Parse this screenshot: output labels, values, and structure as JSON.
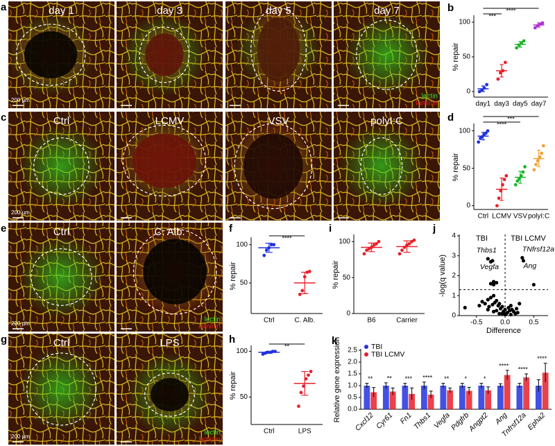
{
  "image_rows": [
    {
      "panel": "a",
      "images": [
        "day 1",
        "day 3",
        "day 5",
        "day 7"
      ],
      "scale_bar": "200 µm",
      "stain_legend": [
        "lectin",
        "laminin"
      ]
    },
    {
      "panel": "c",
      "images": [
        "Ctrl",
        "LCMV",
        "VSV",
        "polyI:C"
      ],
      "scale_bar": "200 µm"
    },
    {
      "panel": "e",
      "images": [
        "Ctrl",
        "C. Alb."
      ],
      "scale_bar": "200 µm",
      "stain_legend": [
        "lectin",
        "laminin"
      ]
    },
    {
      "panel": "g",
      "images": [
        "Ctrl",
        "LPS"
      ],
      "scale_bar": "200 µm",
      "stain_legend": [
        "lectin",
        "laminin"
      ]
    }
  ],
  "chart_data": [
    {
      "type": "dot",
      "panel": "b",
      "ylabel": "% repair",
      "ylim": [
        -8,
        108
      ],
      "yticks": [
        0,
        50,
        100
      ],
      "categories": [
        "day1",
        "day3",
        "day5",
        "day7"
      ],
      "colors": [
        "#2233dd",
        "#e8202a",
        "#1db32a",
        "#b030d0"
      ],
      "points": [
        [
          0,
          2,
          5,
          10
        ],
        [
          18,
          27,
          30,
          42
        ],
        [
          63,
          67,
          70,
          73
        ],
        [
          92,
          95,
          97,
          99
        ]
      ],
      "mean": [
        4,
        30,
        68,
        96
      ],
      "sd": [
        4,
        9,
        4,
        3
      ],
      "significance": [
        {
          "label": "***",
          "from": 0,
          "to": 1
        },
        {
          "label": "****",
          "from": 0,
          "to": 3
        }
      ]
    },
    {
      "type": "dot",
      "panel": "d",
      "ylabel": "% repair",
      "ylim": [
        -5,
        108
      ],
      "yticks": [
        0,
        50,
        100
      ],
      "categories": [
        "Ctrl",
        "LCMV",
        "VSV",
        "polyI:C"
      ],
      "colors": [
        "#2233dd",
        "#e8202a",
        "#1db32a",
        "#f0a030"
      ],
      "points": [
        [
          85,
          90,
          92,
          95,
          97,
          100
        ],
        [
          0,
          10,
          20,
          28,
          35,
          40
        ],
        [
          28,
          33,
          36,
          40,
          45,
          52
        ],
        [
          48,
          55,
          60,
          65,
          70,
          80
        ]
      ],
      "mean": [
        93,
        22,
        38,
        63
      ],
      "sd": [
        5,
        15,
        8,
        11
      ],
      "significance": [
        {
          "label": "****",
          "from": 0,
          "to": 2
        },
        {
          "label": "***",
          "from": 0,
          "to": 3
        }
      ]
    },
    {
      "type": "dot",
      "panel": "f",
      "ylabel": "% repair",
      "ylim": [
        10,
        108
      ],
      "yticks": [
        50,
        100
      ],
      "categories": [
        "Ctrl",
        "C. Alb."
      ],
      "colors": [
        "#2233dd",
        "#e8202a"
      ],
      "points": [
        [
          86,
          93,
          96,
          100,
          100
        ],
        [
          35,
          40,
          58,
          64,
          65
        ]
      ],
      "mean": [
        96,
        50
      ],
      "sd": [
        6,
        14
      ],
      "significance": [
        {
          "label": "****",
          "from": 0,
          "to": 1
        }
      ]
    },
    {
      "type": "dot",
      "panel": "i",
      "ylabel": "% repair",
      "ylim": [
        0,
        108
      ],
      "yticks": [
        0,
        50,
        100
      ],
      "categories": [
        "B6",
        "Carrier"
      ],
      "colors": [
        "#e8202a",
        "#e8202a"
      ],
      "points": [
        [
          83,
          88,
          90,
          92,
          95,
          97,
          100
        ],
        [
          83,
          88,
          92,
          95,
          97,
          100,
          102
        ]
      ],
      "mean": [
        92,
        93
      ],
      "sd": [
        6,
        8
      ]
    },
    {
      "type": "scatter",
      "panel": "j",
      "xlabel": "Difference",
      "ylabel": "-log(q value)",
      "xlim": [
        -0.8,
        0.75
      ],
      "ylim": [
        0,
        4
      ],
      "xticks": [
        -0.5,
        {
          "value": 0,
          "label": "0.0"
        },
        0.5
      ],
      "yticks": [
        0,
        1,
        2,
        3,
        4
      ],
      "group_labels": [
        "TBI",
        "TBI LCMV"
      ],
      "threshold_x": 0,
      "threshold_y": 1.3,
      "color": "#000000",
      "x": [
        -0.3,
        -0.25,
        -0.22,
        -0.2,
        -0.25,
        -0.2,
        -0.15,
        0.3,
        0.32,
        0.5,
        -0.7,
        -0.45,
        -0.4,
        -0.35,
        -0.3,
        -0.28,
        -0.25,
        -0.22,
        -0.2,
        -0.18,
        -0.15,
        -0.12,
        -0.1,
        -0.08,
        -0.05,
        -0.03,
        0,
        0.02,
        0.04,
        0.06,
        0.08,
        0.1,
        0.12,
        0.15,
        0.18,
        0.2,
        0.22,
        0.25,
        -0.3,
        -0.2,
        -0.1,
        0,
        0.1,
        -0.15,
        -0.05
      ],
      "y": [
        2.85,
        2.7,
        2.75,
        1.7,
        1.6,
        1.55,
        1.65,
        2.9,
        2.75,
        1.55,
        0.4,
        0.5,
        0.7,
        0.6,
        0.8,
        0.45,
        0.9,
        0.55,
        1.0,
        0.65,
        0.75,
        0.5,
        0.6,
        0.35,
        0.45,
        0.2,
        0.3,
        0.1,
        0.15,
        0.4,
        0.25,
        0.5,
        0.3,
        0.2,
        0.1,
        0.35,
        0.15,
        0.6,
        0.3,
        0.2,
        0.1,
        0.05,
        0.05,
        0.25,
        0.1
      ],
      "annotations": [
        {
          "text": "Thbs1",
          "x": -0.3,
          "y": 2.85
        },
        {
          "text": "Vegfa",
          "x": -0.25,
          "y": 2.7
        },
        {
          "text": "TNfrsf12a",
          "x": 0.3,
          "y": 2.9
        },
        {
          "text": "Ang",
          "x": 0.32,
          "y": 2.75
        }
      ]
    },
    {
      "type": "dot",
      "panel": "h",
      "ylabel": "% repair",
      "ylim": [
        20,
        105
      ],
      "yticks": [
        50,
        100
      ],
      "categories": [
        "Ctrl",
        "LPS"
      ],
      "colors": [
        "#2233dd",
        "#e8202a"
      ],
      "points": [
        [
          97,
          98,
          99,
          99,
          100,
          100
        ],
        [
          40,
          55,
          62,
          70,
          74,
          78
        ]
      ],
      "mean": [
        99,
        65
      ],
      "sd": [
        1,
        13
      ],
      "significance": [
        {
          "label": "**",
          "from": 0,
          "to": 1
        }
      ]
    },
    {
      "type": "bar",
      "panel": "k",
      "ylabel": "Relative gene expression",
      "ylim": [
        0,
        2.5
      ],
      "yticks": [
        {
          "value": 0,
          "label": "0.0"
        },
        0.5,
        {
          "value": 1,
          "label": "1.0"
        },
        1.5,
        {
          "value": 2,
          "label": "2.0"
        },
        2.5
      ],
      "categories": [
        "Cxcl12",
        "Cyr61",
        "Fn1",
        "Thbs1",
        "Vegfa",
        "Pdgfrb",
        "Angpt2",
        "Ang",
        "Tnfrsf12a",
        "Epha2"
      ],
      "series": [
        {
          "name": "TBI",
          "color": "#2233dd",
          "values": [
            1.0,
            1.0,
            1.0,
            1.0,
            1.0,
            1.0,
            1.0,
            1.0,
            1.0,
            1.0
          ],
          "errors": [
            0.1,
            0.12,
            0.1,
            0.15,
            0.1,
            0.1,
            0.1,
            0.08,
            0.1,
            0.25
          ]
        },
        {
          "name": "TBI LCMV",
          "color": "#e8202a",
          "values": [
            0.72,
            0.75,
            0.65,
            0.62,
            0.8,
            0.78,
            0.8,
            1.45,
            1.35,
            1.55
          ],
          "errors": [
            0.2,
            0.15,
            0.25,
            0.15,
            0.1,
            0.15,
            0.15,
            0.2,
            0.15,
            0.4
          ]
        }
      ],
      "significance": [
        "**",
        "**",
        "***",
        "****",
        "**",
        "*",
        "*",
        "****",
        "****",
        "****"
      ]
    }
  ]
}
